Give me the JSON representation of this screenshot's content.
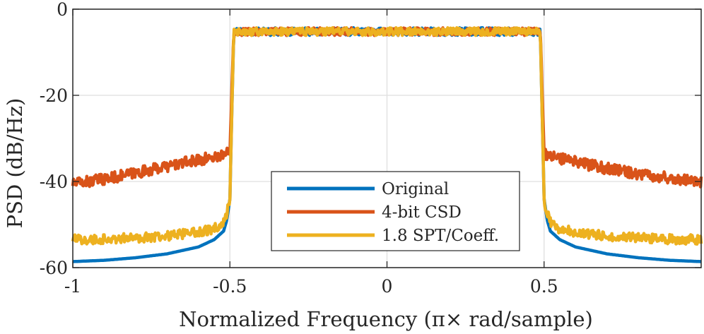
{
  "chart_data": {
    "type": "line",
    "title": "",
    "xlabel": "Normalized Frequency (π× rad/sample)",
    "ylabel": "PSD (dB/Hz)",
    "xlim": [
      -1,
      1
    ],
    "ylim": [
      -60,
      0
    ],
    "x_ticks": [
      -1,
      -0.5,
      0,
      0.5
    ],
    "x_tick_labels": [
      "-1",
      "-0.5",
      "0",
      "0.5"
    ],
    "y_ticks": [
      0,
      -20,
      -40,
      -60
    ],
    "y_tick_labels": [
      "0",
      "-20",
      "-40",
      "-60"
    ],
    "grid": true,
    "legend_position": "bottom-center",
    "passband": {
      "edge": 0.5,
      "level": -5.2,
      "noise_amplitude": 0.9
    },
    "series": [
      {
        "name": "Original",
        "color": "#0072BD",
        "noise_amplitude": 0,
        "stopband_x": [
          0.5,
          0.51,
          0.52,
          0.55,
          0.6,
          0.7,
          0.8,
          0.9,
          1.0
        ],
        "stopband_y": [
          -44,
          -49,
          -51.5,
          -53.5,
          -55.2,
          -56.8,
          -57.7,
          -58.3,
          -58.6
        ]
      },
      {
        "name": "4-bit CSD",
        "color": "#D95319",
        "noise_amplitude": 1.3,
        "stopband_x": [
          0.5,
          0.51,
          0.52,
          0.6,
          0.7,
          0.8,
          0.9,
          1.0
        ],
        "stopband_y": [
          -33.5,
          -34,
          -34.2,
          -35.5,
          -37,
          -38.2,
          -39.2,
          -40
        ],
        "stopband_left_x": [
          -1.0,
          -0.9,
          -0.8,
          -0.7,
          -0.6,
          -0.52,
          -0.51,
          -0.5
        ],
        "stopband_left_y": [
          -40.5,
          -39.5,
          -38,
          -36.5,
          -35,
          -33.8,
          -33.5,
          -33
        ]
      },
      {
        "name": "1.8 SPT/Coeff.",
        "color": "#EDB120",
        "noise_amplitude": 1.1,
        "stopband_x": [
          0.5,
          0.51,
          0.52,
          0.55,
          0.6,
          0.7,
          0.8,
          0.9,
          1.0
        ],
        "stopband_y": [
          -44,
          -47.5,
          -49.5,
          -51,
          -51.8,
          -52.6,
          -53.1,
          -53.4,
          -53.5
        ]
      }
    ]
  }
}
